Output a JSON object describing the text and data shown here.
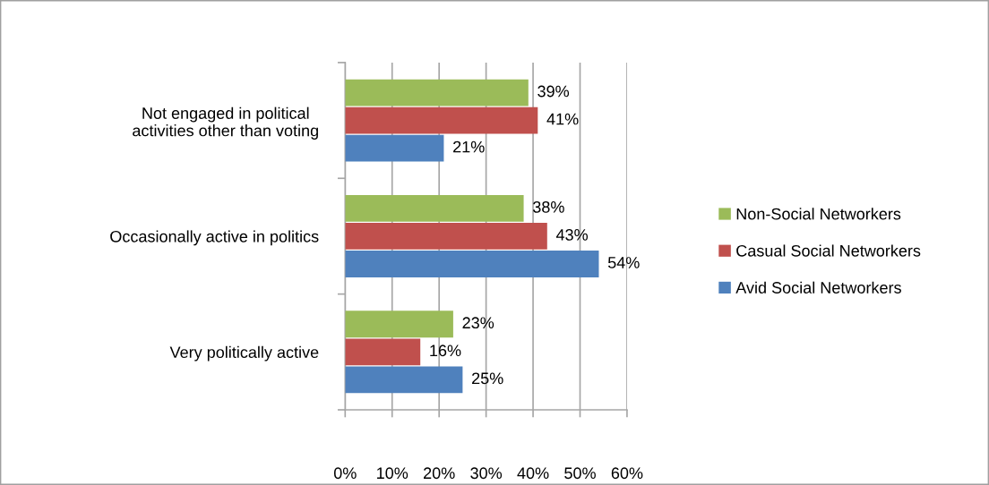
{
  "chart_data": {
    "type": "bar",
    "orientation": "horizontal",
    "categories": [
      "Not engaged in political\nactivities other than voting",
      "Occasionally active in politics",
      "Very politically active"
    ],
    "series": [
      {
        "name": "Non-Social Networkers",
        "color": "#9bbb59",
        "values": [
          39,
          38,
          23
        ],
        "value_labels": [
          "39%",
          "38%",
          "23%"
        ]
      },
      {
        "name": "Casual Social Networkers",
        "color": "#c0504d",
        "values": [
          41,
          43,
          16
        ],
        "value_labels": [
          "41%",
          "43%",
          "16%"
        ]
      },
      {
        "name": "Avid Social Networkers",
        "color": "#4f81bd",
        "values": [
          21,
          54,
          25
        ],
        "value_labels": [
          "21%",
          "54%",
          "25%"
        ]
      }
    ],
    "xlim": [
      0,
      60
    ],
    "xticks": [
      {
        "value": 0,
        "label": "0%"
      },
      {
        "value": 10,
        "label": "10%"
      },
      {
        "value": 20,
        "label": "20%"
      },
      {
        "value": 30,
        "label": "30%"
      },
      {
        "value": 40,
        "label": "40%"
      },
      {
        "value": 50,
        "label": "50%"
      },
      {
        "value": 60,
        "label": "60%"
      }
    ],
    "grid": "x",
    "legend": "right"
  }
}
